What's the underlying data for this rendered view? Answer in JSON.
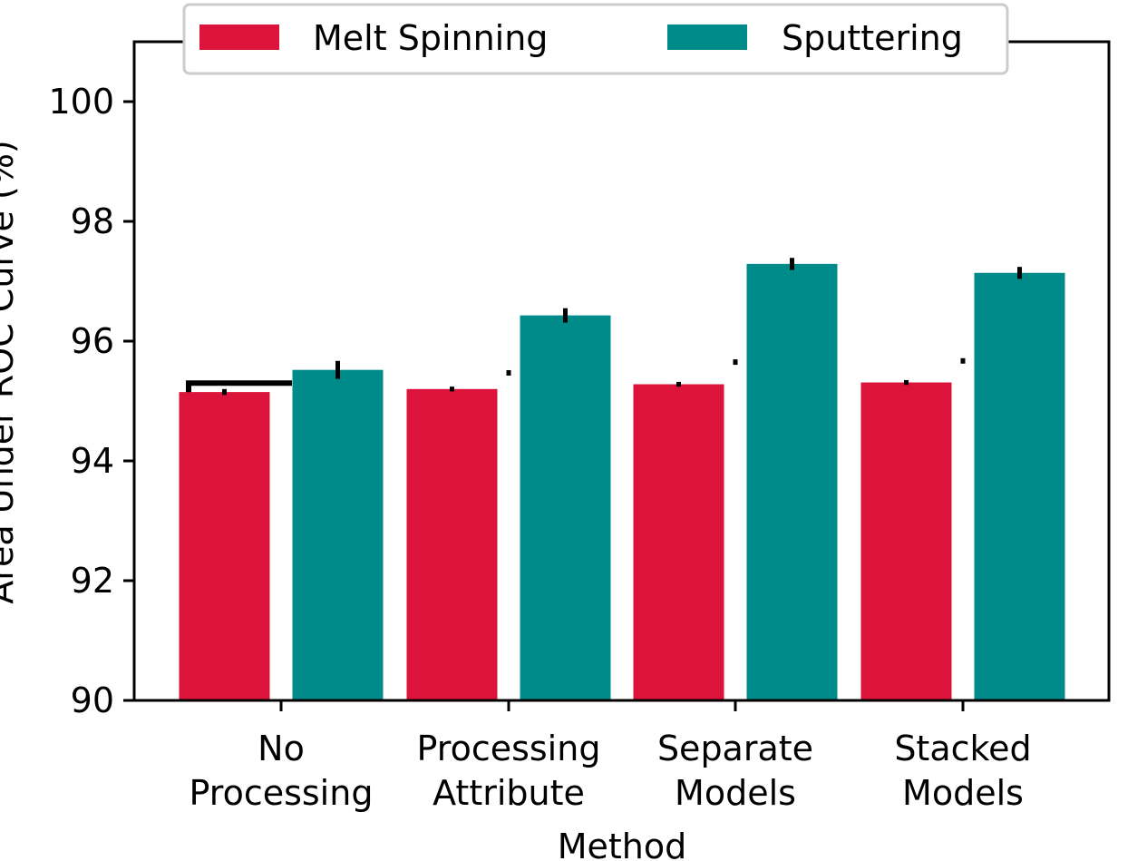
{
  "chart_data": {
    "type": "bar",
    "title": "",
    "xlabel": "Method",
    "ylabel": "Area Under ROC Curve (%)",
    "ylim": [
      90,
      101
    ],
    "yticks": [
      90,
      92,
      94,
      96,
      98,
      100
    ],
    "categories": [
      [
        "No",
        "Processing"
      ],
      [
        "Processing",
        "Attribute"
      ],
      [
        "Separate",
        "Models"
      ],
      [
        "Stacked",
        "Models"
      ]
    ],
    "series": [
      {
        "name": "Melt Spinning",
        "color": "#DC143C",
        "values": [
          95.15,
          95.2,
          95.28,
          95.31
        ],
        "errors": [
          0.05,
          0.04,
          0.04,
          0.04
        ]
      },
      {
        "name": "Sputtering",
        "color": "#008B8B",
        "values": [
          95.52,
          96.43,
          97.29,
          97.14
        ],
        "errors": [
          0.15,
          0.12,
          0.1,
          0.1
        ]
      }
    ],
    "extra_marks": [
      {
        "category": 1,
        "value": 95.47
      },
      {
        "category": 2,
        "value": 95.65
      },
      {
        "category": 3,
        "value": 95.67
      }
    ],
    "bracket": {
      "category": 0,
      "value": 95.3
    },
    "legend_position": "top-center",
    "grid": false
  }
}
